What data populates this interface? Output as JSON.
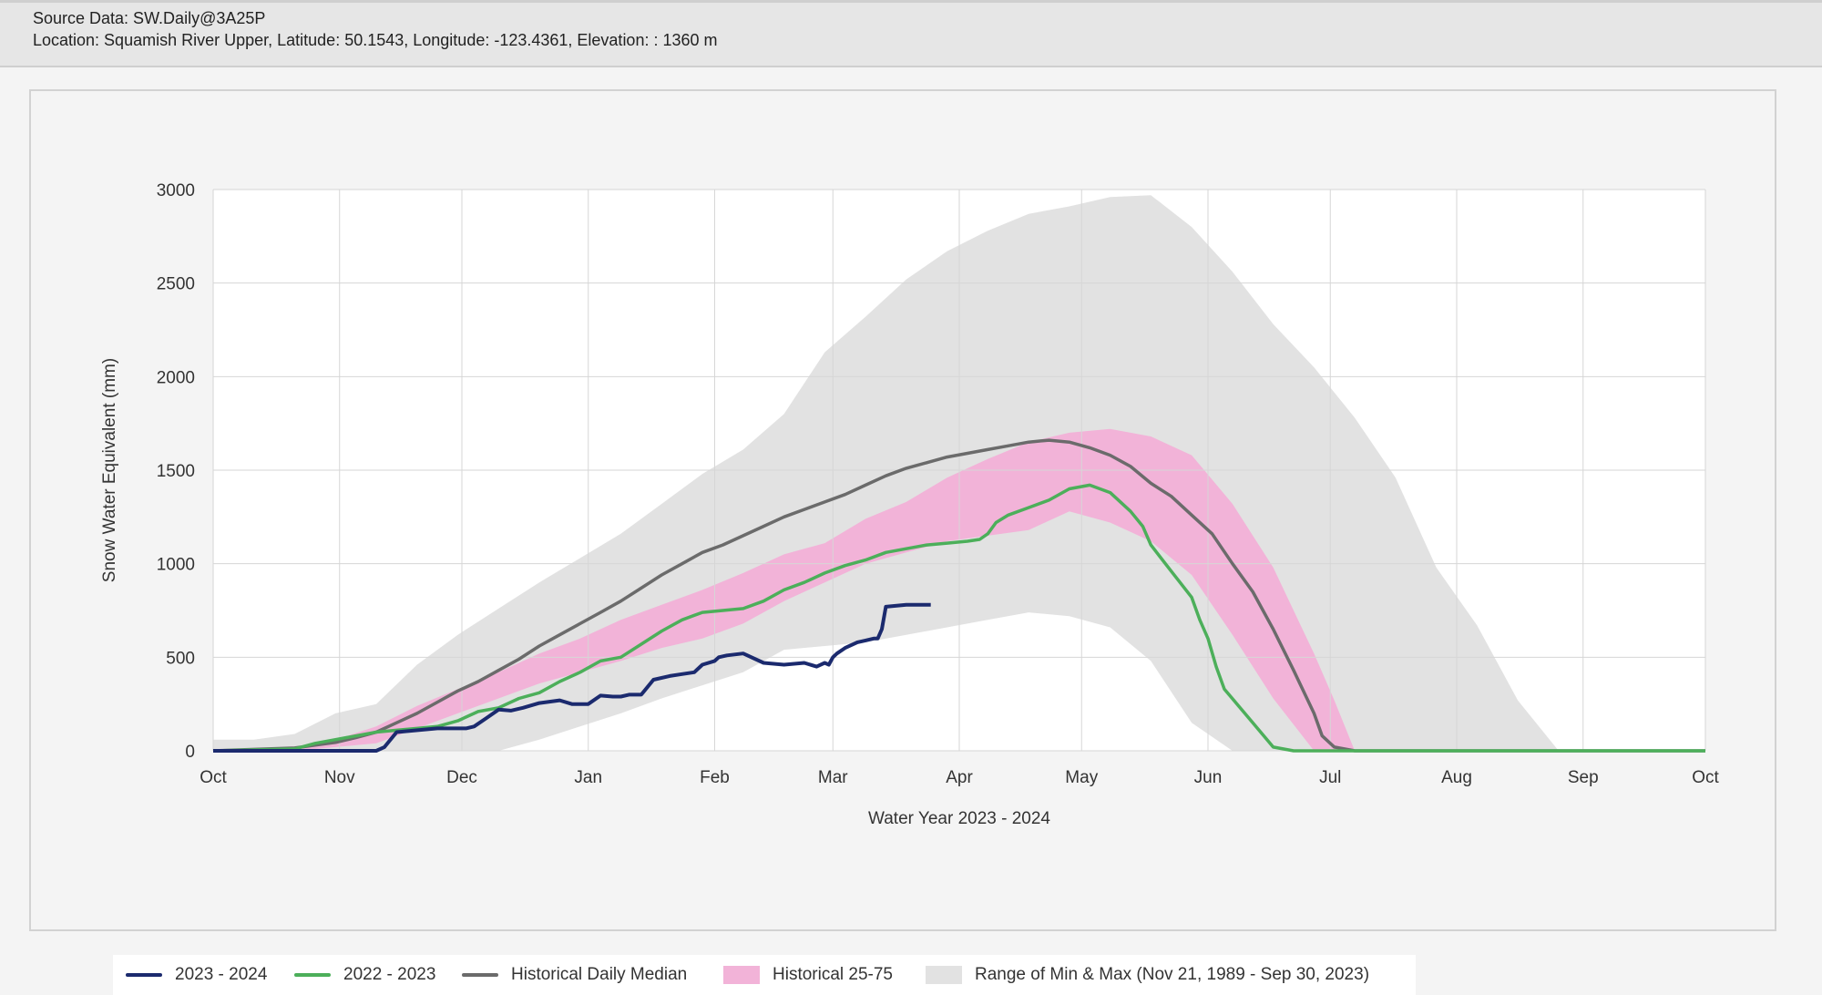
{
  "header": {
    "source": "Source Data: SW.Daily@3A25P",
    "location": "Location: Squamish River Upper, Latitude: 50.1543, Longitude: -123.4361, Elevation: : 1360 m"
  },
  "colors": {
    "s2024": "#1b2a6e",
    "s2023": "#4caf5a",
    "median": "#6b6b6b",
    "band": "#f2b3d8",
    "range": "#e2e2e2",
    "grid": "#d6d6d6",
    "plot_bg": "#ffffff"
  },
  "chart_data": {
    "type": "line",
    "xlabel": "Water Year 2023 - 2024",
    "ylabel": "Snow Water Equivalent (mm)",
    "x_axis": "days since Oct 1 (day 0 = Oct 1, 2023; day 366 = Oct 1, 2024)",
    "xlim": [
      0,
      366
    ],
    "ylim": [
      0,
      3000
    ],
    "yticks": [
      0,
      500,
      1000,
      1500,
      2000,
      2500,
      3000
    ],
    "xticks": [
      {
        "day": 0,
        "label": "Oct"
      },
      {
        "day": 31,
        "label": "Nov"
      },
      {
        "day": 61,
        "label": "Dec"
      },
      {
        "day": 92,
        "label": "Jan"
      },
      {
        "day": 123,
        "label": "Feb"
      },
      {
        "day": 152,
        "label": "Mar"
      },
      {
        "day": 183,
        "label": "Apr"
      },
      {
        "day": 213,
        "label": "May"
      },
      {
        "day": 244,
        "label": "Jun"
      },
      {
        "day": 274,
        "label": "Jul"
      },
      {
        "day": 305,
        "label": "Aug"
      },
      {
        "day": 336,
        "label": "Sep"
      },
      {
        "day": 366,
        "label": "Oct"
      }
    ],
    "grid": true,
    "legend_position": "bottom",
    "series": [
      {
        "name": "2023 - 2024",
        "key": "s2024",
        "x": [
          0,
          20,
          30,
          38,
          40,
          42,
          45,
          55,
          62,
          64,
          67,
          70,
          73,
          76,
          80,
          85,
          88,
          92,
          95,
          98,
          100,
          102,
          105,
          108,
          112,
          115,
          118,
          120,
          123,
          124,
          126,
          130,
          135,
          140,
          145,
          148,
          150,
          151,
          152,
          153,
          155,
          158,
          160,
          162,
          163,
          164,
          165,
          170,
          176
        ],
        "y": [
          0,
          0,
          0,
          0,
          0,
          20,
          100,
          120,
          120,
          130,
          175,
          220,
          215,
          230,
          255,
          270,
          250,
          250,
          295,
          290,
          290,
          300,
          300,
          380,
          400,
          410,
          420,
          460,
          480,
          500,
          510,
          520,
          470,
          460,
          470,
          450,
          470,
          460,
          500,
          520,
          550,
          580,
          590,
          600,
          600,
          650,
          770,
          780,
          780
        ]
      },
      {
        "name": "2022 - 2023",
        "key": "s2023",
        "x": [
          0,
          20,
          25,
          30,
          35,
          40,
          45,
          50,
          55,
          60,
          65,
          70,
          75,
          80,
          85,
          90,
          95,
          100,
          105,
          110,
          115,
          120,
          125,
          130,
          135,
          140,
          145,
          150,
          155,
          160,
          165,
          170,
          175,
          180,
          185,
          188,
          190,
          192,
          195,
          200,
          205,
          210,
          215,
          220,
          225,
          228,
          230,
          235,
          240,
          242,
          244,
          246,
          248,
          255,
          260,
          265,
          300,
          366
        ],
        "y": [
          0,
          10,
          40,
          60,
          80,
          100,
          110,
          120,
          130,
          160,
          210,
          230,
          280,
          310,
          370,
          420,
          480,
          500,
          570,
          640,
          700,
          740,
          750,
          760,
          800,
          860,
          900,
          950,
          990,
          1020,
          1060,
          1080,
          1100,
          1110,
          1120,
          1130,
          1160,
          1220,
          1260,
          1300,
          1340,
          1400,
          1420,
          1380,
          1280,
          1200,
          1100,
          960,
          820,
          700,
          600,
          450,
          330,
          150,
          20,
          0,
          0,
          0
        ]
      },
      {
        "name": "Historical Daily Median",
        "key": "median",
        "x": [
          0,
          20,
          25,
          30,
          35,
          40,
          45,
          50,
          55,
          60,
          65,
          70,
          75,
          80,
          85,
          90,
          95,
          100,
          105,
          110,
          115,
          120,
          125,
          130,
          135,
          140,
          145,
          150,
          155,
          160,
          165,
          170,
          175,
          180,
          185,
          190,
          195,
          200,
          205,
          210,
          215,
          220,
          225,
          230,
          235,
          240,
          245,
          250,
          255,
          260,
          265,
          270,
          272,
          275,
          280,
          366
        ],
        "y": [
          0,
          15,
          30,
          45,
          70,
          100,
          150,
          200,
          260,
          320,
          370,
          430,
          490,
          560,
          620,
          680,
          740,
          800,
          870,
          940,
          1000,
          1060,
          1100,
          1150,
          1200,
          1250,
          1290,
          1330,
          1370,
          1420,
          1470,
          1510,
          1540,
          1570,
          1590,
          1610,
          1630,
          1650,
          1660,
          1650,
          1620,
          1580,
          1520,
          1430,
          1360,
          1260,
          1160,
          1000,
          850,
          650,
          430,
          200,
          80,
          20,
          0,
          0
        ]
      },
      {
        "name": "Historical 25-75",
        "key": "band",
        "type": "area-range",
        "x": [
          0,
          20,
          30,
          40,
          50,
          60,
          70,
          80,
          90,
          100,
          110,
          120,
          130,
          140,
          150,
          160,
          170,
          180,
          190,
          200,
          210,
          220,
          230,
          240,
          250,
          260,
          270,
          275,
          280,
          366
        ],
        "low": [
          0,
          0,
          20,
          40,
          120,
          200,
          280,
          360,
          420,
          480,
          550,
          600,
          680,
          800,
          900,
          1000,
          1060,
          1120,
          1150,
          1180,
          1280,
          1220,
          1120,
          940,
          620,
          280,
          0,
          0,
          0,
          0
        ],
        "high": [
          0,
          10,
          60,
          130,
          240,
          330,
          420,
          520,
          600,
          700,
          780,
          860,
          950,
          1050,
          1110,
          1240,
          1330,
          1460,
          1560,
          1650,
          1700,
          1720,
          1680,
          1580,
          1320,
          980,
          520,
          270,
          0,
          0
        ]
      },
      {
        "name": "Range of Min & Max (Nov 21, 1989 - Sep 30, 2023)",
        "key": "range",
        "type": "area-range",
        "x": [
          0,
          10,
          20,
          30,
          40,
          50,
          60,
          70,
          80,
          90,
          100,
          110,
          120,
          130,
          140,
          150,
          160,
          170,
          180,
          190,
          200,
          210,
          220,
          230,
          240,
          250,
          260,
          270,
          280,
          290,
          300,
          310,
          320,
          330,
          340,
          366
        ],
        "low": [
          0,
          0,
          0,
          0,
          0,
          0,
          0,
          0,
          60,
          130,
          200,
          280,
          350,
          420,
          540,
          560,
          580,
          620,
          660,
          700,
          740,
          720,
          660,
          480,
          150,
          0,
          0,
          0,
          0,
          0,
          0,
          0,
          0,
          0,
          0,
          0
        ],
        "high": [
          60,
          60,
          90,
          200,
          250,
          460,
          620,
          760,
          900,
          1030,
          1160,
          1320,
          1480,
          1610,
          1800,
          2130,
          2320,
          2520,
          2670,
          2780,
          2870,
          2910,
          2960,
          2970,
          2800,
          2560,
          2280,
          2050,
          1780,
          1460,
          980,
          670,
          270,
          0,
          0,
          0
        ]
      }
    ]
  },
  "legend": [
    {
      "label": "2023 - 2024",
      "key": "s2024",
      "kind": "line"
    },
    {
      "label": "2022 - 2023",
      "key": "s2023",
      "kind": "line"
    },
    {
      "label": "Historical Daily Median",
      "key": "median",
      "kind": "line"
    },
    {
      "label": "Historical 25-75",
      "key": "band",
      "kind": "box"
    },
    {
      "label": "Range of Min & Max (Nov 21, 1989 - Sep 30, 2023)",
      "key": "range",
      "kind": "box"
    }
  ]
}
